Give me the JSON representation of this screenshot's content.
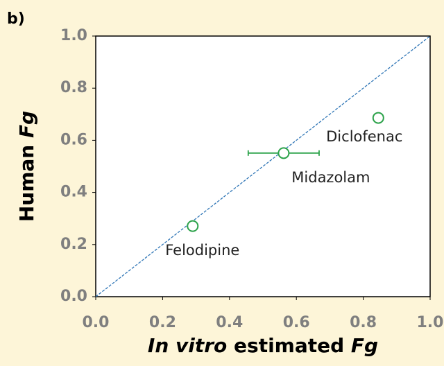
{
  "chart_data": {
    "type": "scatter",
    "panel_label": "b)",
    "xlabel_parts": [
      {
        "text": "In vitro",
        "italic": true
      },
      {
        "text": " estimated ",
        "italic": false
      },
      {
        "text": "Fg",
        "italic": true
      }
    ],
    "ylabel_parts": [
      {
        "text": "Human ",
        "italic": false
      },
      {
        "text": "Fg",
        "italic": true
      }
    ],
    "xlim": [
      0,
      1
    ],
    "ylim": [
      0,
      1
    ],
    "xticks": [
      {
        "value": 0,
        "label": "0.0"
      },
      0.2,
      0.4,
      0.6,
      0.8,
      {
        "value": 1,
        "label": "1.0"
      }
    ],
    "yticks": [
      {
        "value": 0,
        "label": "0.0"
      },
      0.2,
      0.4,
      0.6,
      0.8,
      {
        "value": 1,
        "label": "1.0"
      }
    ],
    "identity_line": true,
    "identity_color": "#2e75b6",
    "series": [
      {
        "color": "#2ca24a",
        "labels": [
          "Felodipine",
          "Midazolam",
          "Diclofenac"
        ],
        "x": [
          0.29,
          0.562,
          0.845
        ],
        "values": [
          0.271,
          0.551,
          0.686
        ],
        "xerr": [
          null,
          0.106,
          null
        ]
      }
    ]
  }
}
